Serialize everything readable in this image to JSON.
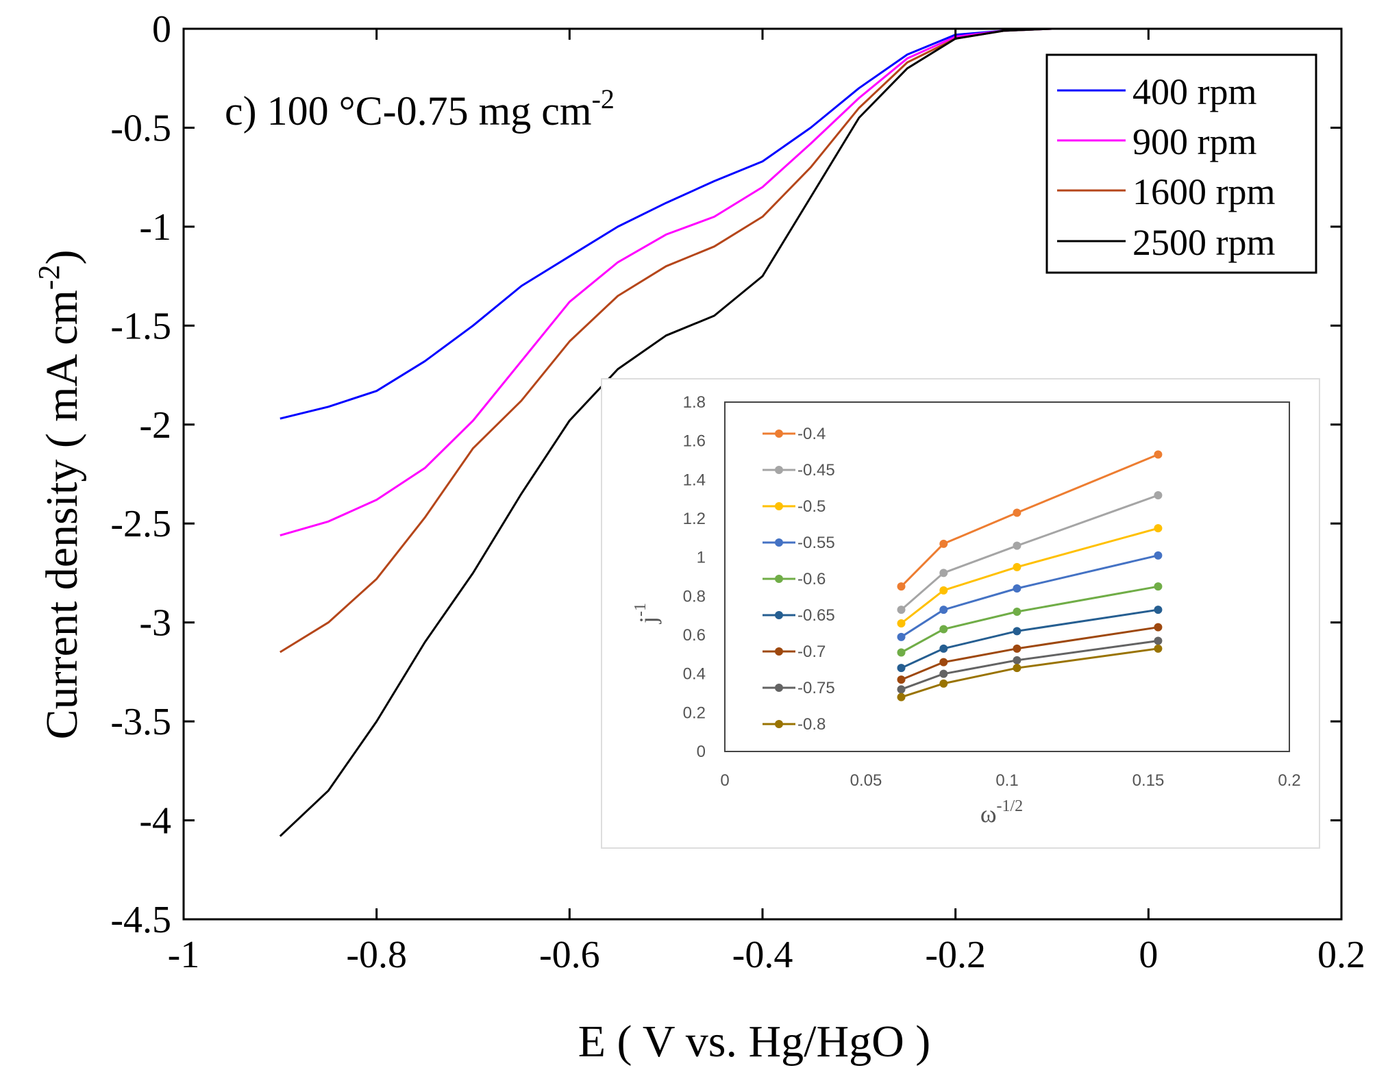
{
  "chart_data": [
    {
      "type": "line",
      "panel_label": "c) 100 °C-0.75 mg cm",
      "panel_label_sup": "-2",
      "xlabel": "E ( V vs. Hg/HgO )",
      "ylabel": "Current density ( mA cm",
      "ylabel_sup": "-2",
      "ylabel_end": ")",
      "xlim": [
        -1,
        0.2
      ],
      "ylim": [
        -4.5,
        0
      ],
      "xticks": [
        -1,
        -0.8,
        -0.6,
        -0.4,
        -0.2,
        0,
        0.2
      ],
      "xtick_labels": [
        "-1",
        "-0.8",
        "-0.6",
        "-0.4",
        "-0.2",
        "0",
        "0.2"
      ],
      "yticks": [
        0,
        -0.5,
        -1,
        -1.5,
        -2,
        -2.5,
        -3,
        -3.5,
        -4,
        -4.5
      ],
      "ytick_labels": [
        "0",
        "-0.5",
        "-1",
        "-1.5",
        "-2",
        "-2.5",
        "-3",
        "-3.5",
        "-4",
        "-4.5"
      ],
      "legend_position": "top-right",
      "series": [
        {
          "name": "400 rpm",
          "color": "#0000ff",
          "x": [
            -0.9,
            -0.85,
            -0.8,
            -0.75,
            -0.7,
            -0.65,
            -0.6,
            -0.55,
            -0.5,
            -0.45,
            -0.4,
            -0.35,
            -0.3,
            -0.25,
            -0.2,
            -0.15,
            -0.1,
            -0.05,
            0,
            0.01
          ],
          "y": [
            -1.97,
            -1.91,
            -1.83,
            -1.68,
            -1.5,
            -1.3,
            -1.15,
            -1.0,
            -0.88,
            -0.77,
            -0.67,
            -0.5,
            -0.3,
            -0.13,
            -0.03,
            -0.01,
            0,
            0,
            0,
            0
          ]
        },
        {
          "name": "900 rpm",
          "color": "#ff00ff",
          "x": [
            -0.9,
            -0.85,
            -0.8,
            -0.75,
            -0.7,
            -0.65,
            -0.6,
            -0.55,
            -0.5,
            -0.45,
            -0.4,
            -0.35,
            -0.3,
            -0.25,
            -0.2,
            -0.15,
            -0.1,
            -0.05,
            0,
            0.01
          ],
          "y": [
            -2.56,
            -2.49,
            -2.38,
            -2.22,
            -1.98,
            -1.68,
            -1.38,
            -1.18,
            -1.04,
            -0.95,
            -0.8,
            -0.58,
            -0.35,
            -0.15,
            -0.04,
            -0.01,
            0,
            0,
            0,
            0
          ]
        },
        {
          "name": "1600 rpm",
          "color": "#b5461a",
          "x": [
            -0.9,
            -0.85,
            -0.8,
            -0.75,
            -0.7,
            -0.65,
            -0.6,
            -0.55,
            -0.5,
            -0.45,
            -0.4,
            -0.35,
            -0.3,
            -0.25,
            -0.2,
            -0.15,
            -0.1,
            -0.05,
            0,
            0.01
          ],
          "y": [
            -3.15,
            -3.0,
            -2.78,
            -2.47,
            -2.12,
            -1.88,
            -1.58,
            -1.35,
            -1.2,
            -1.1,
            -0.95,
            -0.7,
            -0.4,
            -0.17,
            -0.05,
            -0.01,
            0,
            0,
            0,
            0
          ]
        },
        {
          "name": "2500 rpm",
          "color": "#000000",
          "x": [
            -0.9,
            -0.85,
            -0.8,
            -0.75,
            -0.7,
            -0.65,
            -0.6,
            -0.55,
            -0.5,
            -0.45,
            -0.4,
            -0.35,
            -0.3,
            -0.25,
            -0.2,
            -0.15,
            -0.1,
            -0.05,
            0,
            0.01
          ],
          "y": [
            -4.08,
            -3.85,
            -3.5,
            -3.1,
            -2.75,
            -2.35,
            -1.98,
            -1.72,
            -1.55,
            -1.45,
            -1.25,
            -0.85,
            -0.45,
            -0.2,
            -0.05,
            -0.01,
            0,
            0,
            0,
            0
          ]
        }
      ]
    },
    {
      "type": "line",
      "xlabel": "ω",
      "xlabel_sup": "-1/2",
      "ylabel": "j",
      "ylabel_sup": "-1",
      "xlim": [
        0,
        0.2
      ],
      "ylim": [
        0,
        1.8
      ],
      "xticks": [
        0,
        0.05,
        0.1,
        0.15,
        0.2
      ],
      "xtick_labels": [
        "0",
        "0.05",
        "0.1",
        "0.15",
        "0.2"
      ],
      "yticks": [
        0,
        0.2,
        0.4,
        0.6,
        0.8,
        1,
        1.2,
        1.4,
        1.6,
        1.8
      ],
      "ytick_labels": [
        "0",
        "0.2",
        "0.4",
        "0.6",
        "0.8",
        "1",
        "1.2",
        "1.4",
        "1.6",
        "1.8"
      ],
      "legend_position": "left",
      "x": [
        0.0625,
        0.0775,
        0.1035,
        0.1535
      ],
      "series": [
        {
          "name": "-0.4",
          "color": "#ed7d31",
          "values": [
            0.85,
            1.07,
            1.23,
            1.53
          ]
        },
        {
          "name": "-0.45",
          "color": "#a5a5a5",
          "values": [
            0.73,
            0.92,
            1.06,
            1.32
          ]
        },
        {
          "name": "-0.5",
          "color": "#ffc000",
          "values": [
            0.66,
            0.83,
            0.95,
            1.15
          ]
        },
        {
          "name": "-0.55",
          "color": "#4472c4",
          "values": [
            0.59,
            0.73,
            0.84,
            1.01
          ]
        },
        {
          "name": "-0.6",
          "color": "#70ad47",
          "values": [
            0.51,
            0.63,
            0.72,
            0.85
          ]
        },
        {
          "name": "-0.65",
          "color": "#255e91",
          "values": [
            0.43,
            0.53,
            0.62,
            0.73
          ]
        },
        {
          "name": "-0.7",
          "color": "#9e480e",
          "values": [
            0.37,
            0.46,
            0.53,
            0.64
          ]
        },
        {
          "name": "-0.75",
          "color": "#636363",
          "values": [
            0.32,
            0.4,
            0.47,
            0.57
          ]
        },
        {
          "name": "-0.8",
          "color": "#997300",
          "values": [
            0.28,
            0.35,
            0.43,
            0.53
          ]
        }
      ]
    }
  ]
}
